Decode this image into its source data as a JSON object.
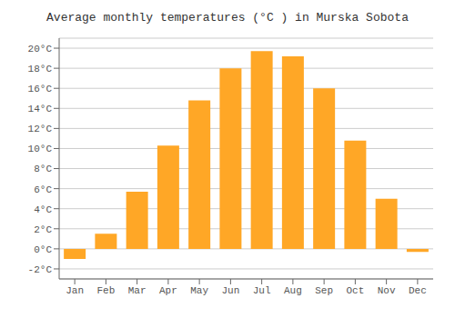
{
  "chart_data": {
    "type": "bar",
    "title": "Average monthly temperatures (°C ) in Murska Sobota",
    "categories": [
      "Jan",
      "Feb",
      "Mar",
      "Apr",
      "May",
      "Jun",
      "Jul",
      "Aug",
      "Sep",
      "Oct",
      "Nov",
      "Dec"
    ],
    "values": [
      -1.0,
      1.5,
      5.7,
      10.3,
      14.8,
      18.0,
      19.7,
      19.2,
      16.0,
      10.8,
      5.0,
      -0.3
    ],
    "color": "#FFA726",
    "ylim": [
      -3,
      21
    ],
    "yticks": [
      {
        "value": -2,
        "label": "-2°C"
      },
      {
        "value": 0,
        "label": "0°C"
      },
      {
        "value": 2,
        "label": "2°C"
      },
      {
        "value": 4,
        "label": "4°C"
      },
      {
        "value": 6,
        "label": "6°C"
      },
      {
        "value": 8,
        "label": "8°C"
      },
      {
        "value": 10,
        "label": "10°C"
      },
      {
        "value": 12,
        "label": "12°C"
      },
      {
        "value": 14,
        "label": "14°C"
      },
      {
        "value": 16,
        "label": "16°C"
      },
      {
        "value": 18,
        "label": "18°C"
      },
      {
        "value": 20,
        "label": "20°C"
      }
    ],
    "grid": true
  }
}
